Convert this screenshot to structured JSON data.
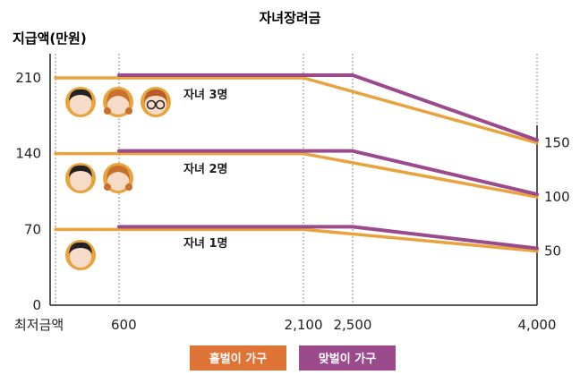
{
  "chart_data": {
    "type": "line",
    "title": "자녀장려금",
    "ylabel": "지급액(만원)",
    "xlabel": "",
    "x_categories": [
      "최저금액",
      "600",
      "2,100",
      "2,500",
      "4,000"
    ],
    "x_values": [
      0,
      600,
      2100,
      2500,
      4000
    ],
    "y_ticks": [
      "0",
      "70",
      "140",
      "210"
    ],
    "y_tick_values": [
      0,
      70,
      140,
      210
    ],
    "right_ticks": [
      "50",
      "100",
      "150"
    ],
    "right_tick_values": [
      50,
      100,
      150
    ],
    "ylim": [
      0,
      215
    ],
    "legend": [
      "홑벌이 가구",
      "맞벌이 가구"
    ],
    "colors": {
      "single": "#E8A33C",
      "dual": "#9B4A8C",
      "legend_single": "#DF7437",
      "legend_dual": "#9B4A8C",
      "grid": "#888888"
    },
    "annotations": [
      "자녀 3명",
      "자녀 2명",
      "자녀 1명"
    ],
    "series": [
      {
        "name": "홑벌이 가구",
        "group": "자녀 3명",
        "x": [
          0,
          2100,
          4000
        ],
        "y": [
          210,
          210,
          150
        ]
      },
      {
        "name": "맞벌이 가구",
        "group": "자녀 3명",
        "x": [
          600,
          2500,
          4000
        ],
        "y": [
          210,
          210,
          150
        ]
      },
      {
        "name": "홑벌이 가구",
        "group": "자녀 2명",
        "x": [
          0,
          2100,
          4000
        ],
        "y": [
          140,
          140,
          100
        ]
      },
      {
        "name": "맞벌이 가구",
        "group": "자녀 2명",
        "x": [
          600,
          2500,
          4000
        ],
        "y": [
          140,
          140,
          100
        ]
      },
      {
        "name": "홑벌이 가구",
        "group": "자녀 1명",
        "x": [
          0,
          2100,
          4000
        ],
        "y": [
          70,
          70,
          50
        ]
      },
      {
        "name": "맞벌이 가구",
        "group": "자녀 1명",
        "x": [
          600,
          2500,
          4000
        ],
        "y": [
          70,
          70,
          50
        ]
      }
    ],
    "grid": true
  }
}
